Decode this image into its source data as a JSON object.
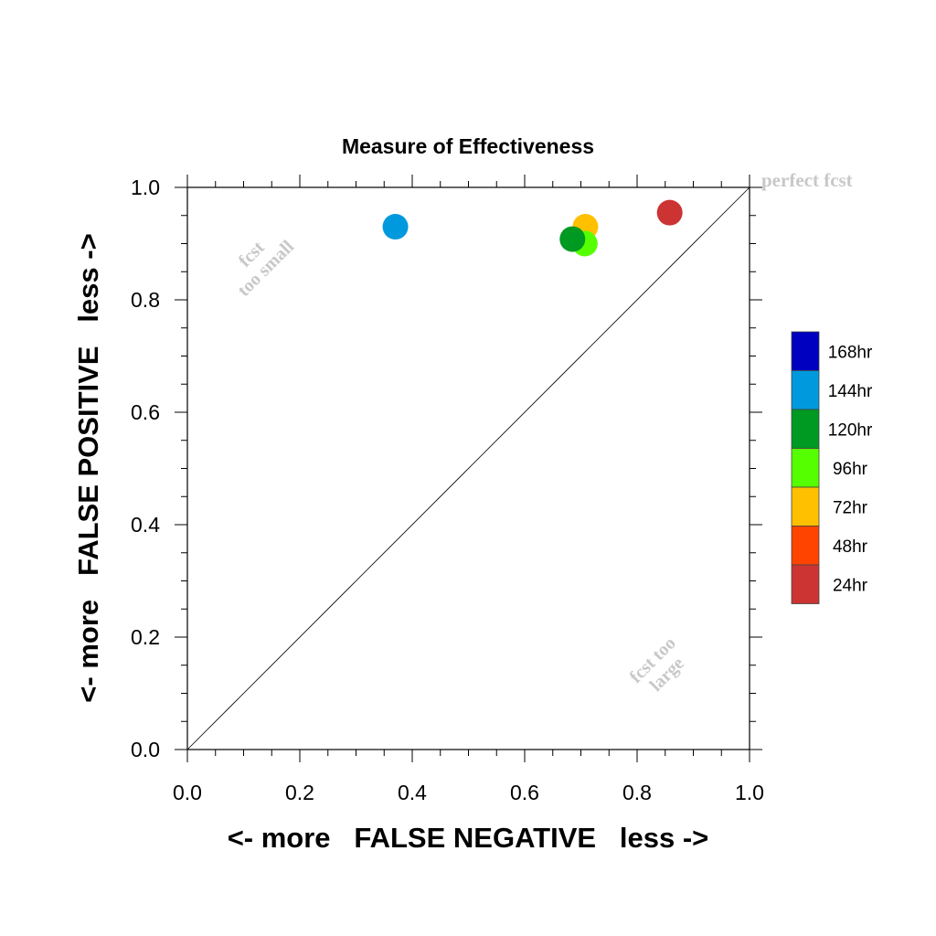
{
  "chart_data": {
    "type": "scatter",
    "title": "Measure of Effectiveness",
    "xlabel": "<- more   FALSE NEGATIVE   less ->",
    "ylabel": "<- more   FALSE POSITIVE   less ->",
    "xlim": [
      0.0,
      1.0
    ],
    "ylim": [
      0.0,
      1.0
    ],
    "xticks": [
      0.0,
      0.2,
      0.4,
      0.6,
      0.8,
      1.0
    ],
    "yticks": [
      0.0,
      0.2,
      0.4,
      0.6,
      0.8,
      1.0
    ],
    "xtick_labels": [
      "0.0",
      "0.2",
      "0.4",
      "0.6",
      "0.8",
      "1.0"
    ],
    "ytick_labels": [
      "0.0",
      "0.2",
      "0.4",
      "0.6",
      "0.8",
      "1.0"
    ],
    "grid": false,
    "legend_placement": "right",
    "reference_line": {
      "from": [
        0,
        0
      ],
      "to": [
        1,
        1
      ]
    },
    "annotations": {
      "perfect": "perfect fcst",
      "too_small_1": "fcst",
      "too_small_2": "too small",
      "too_large_1": "fcst too",
      "too_large_2": "large"
    },
    "series": [
      {
        "name": "168hr",
        "color": "#0000C0",
        "points": []
      },
      {
        "name": "144hr",
        "color": "#0099DD",
        "points": [
          [
            0.37,
            0.93
          ]
        ]
      },
      {
        "name": "120hr",
        "color": "#009922",
        "points": [
          [
            0.685,
            0.908
          ]
        ]
      },
      {
        "name": "96hr",
        "color": "#55FF00",
        "points": [
          [
            0.707,
            0.9
          ]
        ]
      },
      {
        "name": "72hr",
        "color": "#FFC000",
        "points": [
          [
            0.708,
            0.93
          ]
        ]
      },
      {
        "name": "48hr",
        "color": "#FF4400",
        "points": []
      },
      {
        "name": "24hr",
        "color": "#CC3333",
        "points": [
          [
            0.858,
            0.955
          ]
        ]
      }
    ]
  }
}
